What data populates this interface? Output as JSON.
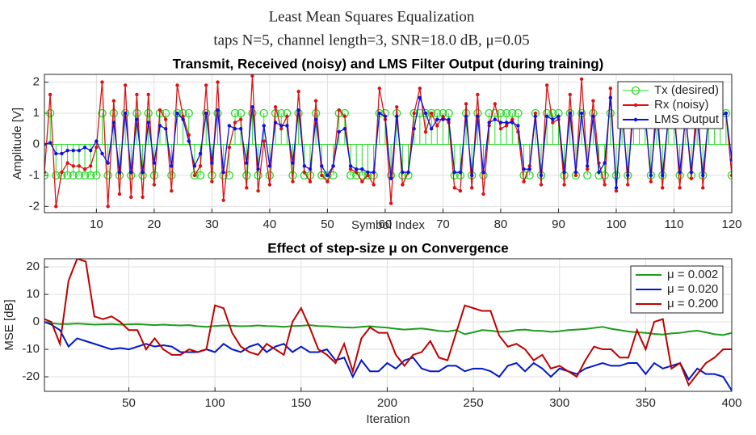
{
  "figure": {
    "title": "Least Mean Squares Equalization",
    "subtitle": "taps N=5, channel length=3, SNR=18.0 dB, μ=0.05"
  },
  "chart_data": [
    {
      "type": "line",
      "title": "Transmit, Received (noisy) and LMS Filter Output (during training)",
      "xlabel": "Symbol Index",
      "ylabel": "Amplitude [V]",
      "xlim": [
        1,
        120
      ],
      "xticks": [
        10,
        20,
        30,
        40,
        50,
        60,
        70,
        80,
        90,
        100,
        110,
        120
      ],
      "ylim": [
        -2.2,
        2.25
      ],
      "yticks": [
        -2,
        -1,
        0,
        1,
        2
      ],
      "grid": true,
      "legend": "upper right",
      "x": [
        1,
        2,
        3,
        4,
        5,
        6,
        7,
        8,
        9,
        10,
        11,
        12,
        13,
        14,
        15,
        16,
        17,
        18,
        19,
        20,
        21,
        22,
        23,
        24,
        25,
        26,
        27,
        28,
        29,
        30,
        31,
        32,
        33,
        34,
        35,
        36,
        37,
        38,
        39,
        40,
        41,
        42,
        43,
        44,
        45,
        46,
        47,
        48,
        49,
        50,
        51,
        52,
        53,
        54,
        55,
        56,
        57,
        58,
        59,
        60,
        61,
        62,
        63,
        64,
        65,
        66,
        67,
        68,
        69,
        70,
        71,
        72,
        73,
        74,
        75,
        76,
        77,
        78,
        79,
        80,
        81,
        82,
        83,
        84,
        85,
        86,
        87,
        88,
        89,
        90,
        91,
        92,
        93,
        94,
        95,
        96,
        97,
        98,
        99,
        100,
        101,
        102,
        103,
        104,
        105,
        106,
        107,
        108,
        109,
        110,
        111,
        112,
        113,
        114,
        115,
        116,
        117,
        118,
        119,
        120
      ],
      "series": [
        {
          "name": "Tx (desired)",
          "color": "#22dd22",
          "style": "stem",
          "values": [
            -1,
            1,
            -1,
            -1,
            -1,
            -1,
            -1,
            -1,
            -1,
            -1,
            1,
            -1,
            1,
            -1,
            1,
            -1,
            1,
            -1,
            1,
            -1,
            1,
            1,
            -1,
            1,
            1,
            1,
            -1,
            -1,
            1,
            -1,
            1,
            -1,
            -1,
            1,
            1,
            -1,
            1,
            -1,
            1,
            -1,
            1,
            1,
            1,
            -1,
            1,
            -1,
            -1,
            1,
            -1,
            -1,
            -1,
            1,
            1,
            -1,
            -1,
            -1,
            -1,
            -1,
            1,
            1,
            -1,
            1,
            -1,
            -1,
            1,
            1,
            1,
            1,
            1,
            1,
            1,
            -1,
            -1,
            1,
            -1,
            1,
            -1,
            1,
            1,
            1,
            1,
            1,
            1,
            -1,
            -1,
            1,
            -1,
            1,
            1,
            1,
            -1,
            1,
            -1,
            1,
            -1,
            1,
            -1,
            -1,
            1,
            -1,
            1,
            -1,
            1,
            1,
            1,
            -1,
            1,
            -1,
            1,
            1,
            -1,
            1,
            -1,
            1,
            -1,
            1,
            1,
            1,
            1,
            -1
          ]
        },
        {
          "name": "Rx (noisy)",
          "color": "#e01010",
          "style": "line",
          "values": [
            -0.9,
            1.6,
            -2.0,
            -0.9,
            -0.6,
            -0.7,
            -0.7,
            -0.8,
            -0.7,
            -0.1,
            2.0,
            -2.0,
            1.4,
            -1.6,
            1.9,
            -1.7,
            1.6,
            -1.7,
            1.6,
            -1.3,
            1.1,
            0.8,
            -1.5,
            1.9,
            0.9,
            0.3,
            -1.0,
            -0.7,
            1.9,
            -1.2,
            2.0,
            -1.8,
            -0.1,
            0.7,
            0.8,
            -1.4,
            2.2,
            -1.5,
            0.1,
            -1.3,
            1.2,
            0.5,
            0.9,
            -1.2,
            1.7,
            -0.9,
            -1.2,
            1.4,
            -1.0,
            -1.2,
            -0.7,
            1.1,
            0.9,
            -0.8,
            -0.9,
            -1.2,
            -1.0,
            -1.3,
            1.8,
            0.8,
            -1.9,
            1.2,
            -1.3,
            -0.9,
            1.0,
            1.8,
            0.4,
            1.0,
            0.6,
            0.9,
            0.7,
            -1.4,
            -1.5,
            1.3,
            -1.4,
            1.6,
            -1.6,
            0.6,
            1.3,
            0.5,
            0.6,
            0.8,
            0.4,
            -1.2,
            -0.7,
            1.0,
            -1.3,
            1.9,
            0.7,
            0.8,
            -1.3,
            1.6,
            -1.0,
            2.1,
            -0.8,
            1.4,
            -0.6,
            -1.3,
            1.8,
            -1.5,
            1.3,
            -1.3,
            1.7,
            0.6,
            1.0,
            -1.2,
            1.6,
            -1.4,
            0.9,
            1.3,
            -1.4,
            1.0,
            -1.1,
            1.6,
            -1.4,
            1.0,
            0.6,
            0.9,
            1.0,
            -1.0
          ]
        },
        {
          "name": "LMS Output",
          "color": "#1010e0",
          "style": "line",
          "values": [
            0,
            0.05,
            -0.3,
            -0.3,
            -0.2,
            -0.2,
            -0.2,
            -0.1,
            -0.2,
            0.1,
            -0.3,
            -0.6,
            0.7,
            -0.9,
            1.0,
            -0.9,
            0.8,
            -0.9,
            0.7,
            -0.6,
            0.6,
            0.5,
            -0.7,
            1.0,
            0.8,
            0.1,
            -0.7,
            -0.3,
            1.0,
            -0.6,
            1.1,
            -0.9,
            0.6,
            0.5,
            0.5,
            -0.6,
            1.2,
            -0.8,
            0.6,
            -0.7,
            0.7,
            0.6,
            0.6,
            -0.6,
            1.1,
            -0.7,
            -0.8,
            0.8,
            -0.7,
            -1.0,
            -0.7,
            0.4,
            0.5,
            -0.7,
            -0.8,
            -0.8,
            -0.9,
            -0.9,
            1.0,
            0.9,
            -1.1,
            0.9,
            -0.9,
            -0.9,
            0.5,
            1.5,
            1.0,
            0.5,
            0.8,
            0.8,
            0.8,
            -0.9,
            -0.9,
            0.9,
            -1.0,
            0.9,
            -0.9,
            0.7,
            0.8,
            0.7,
            0.7,
            0.7,
            0.6,
            -0.8,
            -0.8,
            0.9,
            -1.0,
            0.9,
            0.8,
            0.9,
            -0.9,
            1.0,
            -0.9,
            1.0,
            -0.7,
            0.9,
            -0.9,
            -0.6,
            1.5,
            -1.4,
            1.0,
            -1.0,
            1.1,
            0.8,
            0.9,
            -1.0,
            1.0,
            -1.0,
            0.8,
            0.9,
            -0.9,
            0.9,
            -0.9,
            0.9,
            -1.0,
            0.9,
            0.8,
            0.9,
            1.0,
            -0.5
          ]
        }
      ]
    },
    {
      "type": "line",
      "title": "Effect of step-size μ on Convergence",
      "xlabel": "Iteration",
      "ylabel": "MSE [dB]",
      "xlim": [
        1,
        400
      ],
      "xticks": [
        50,
        100,
        150,
        200,
        250,
        300,
        350,
        400
      ],
      "ylim": [
        -25.3,
        23
      ],
      "yticks": [
        -20,
        -10,
        0,
        10,
        20
      ],
      "grid": true,
      "legend": "upper right",
      "x": [
        1,
        5,
        10,
        15,
        20,
        25,
        30,
        35,
        40,
        45,
        50,
        55,
        60,
        65,
        70,
        75,
        80,
        85,
        90,
        95,
        100,
        105,
        110,
        115,
        120,
        125,
        130,
        135,
        140,
        145,
        150,
        155,
        160,
        165,
        170,
        175,
        180,
        185,
        190,
        195,
        200,
        205,
        210,
        215,
        220,
        225,
        230,
        235,
        240,
        245,
        250,
        255,
        260,
        265,
        270,
        275,
        280,
        285,
        290,
        295,
        300,
        305,
        310,
        315,
        320,
        325,
        330,
        335,
        340,
        345,
        350,
        355,
        360,
        365,
        370,
        375,
        380,
        385,
        390,
        395,
        400
      ],
      "series": [
        {
          "name": "μ = 0.002",
          "color": "#1a9e1a",
          "style": "line",
          "values": [
            0,
            -0.5,
            -0.8,
            -0.8,
            -0.6,
            -0.8,
            -1,
            -0.9,
            -0.8,
            -1,
            -0.9,
            -0.8,
            -1,
            -1.2,
            -1,
            -1.2,
            -1.3,
            -1.2,
            -1.6,
            -1.8,
            -1.5,
            -1.3,
            -1.4,
            -1.6,
            -1.5,
            -1.3,
            -1.5,
            -1.6,
            -1.8,
            -1.5,
            -1.4,
            -1.2,
            -1.5,
            -1.6,
            -1.8,
            -2,
            -2.1,
            -1.8,
            -1.6,
            -1.9,
            -2.1,
            -2.5,
            -2.8,
            -2.6,
            -2.4,
            -2.8,
            -3.3,
            -3.5,
            -3,
            -4.5,
            -3.8,
            -3,
            -3.2,
            -3.6,
            -3.5,
            -3,
            -2.8,
            -3.2,
            -3.3,
            -3.6,
            -3.4,
            -3,
            -2.8,
            -2.6,
            -2.2,
            -1.8,
            -2.5,
            -3,
            -3.5,
            -3.8,
            -4,
            -4.4,
            -4.6,
            -4.2,
            -4,
            -3.5,
            -3.2,
            -3.8,
            -4.5,
            -4.8,
            -4
          ]
        },
        {
          "name": "μ = 0.020",
          "color": "#0018c8",
          "style": "line",
          "values": [
            0,
            -1,
            -3,
            -9,
            -6,
            -7,
            -8,
            -9,
            -10,
            -9.5,
            -10,
            -9,
            -8,
            -9,
            -8.5,
            -9,
            -11,
            -11,
            -11,
            -10,
            -11,
            -8,
            -10,
            -11,
            -9,
            -8,
            -11,
            -9,
            -8,
            -11,
            -9,
            -11,
            -11,
            -10,
            -14,
            -13,
            -20,
            -14,
            -18,
            -18,
            -15,
            -17,
            -14,
            -13,
            -17,
            -18,
            -18,
            -16,
            -16,
            -18,
            -17,
            -17,
            -18,
            -20,
            -16,
            -15,
            -18,
            -15,
            -17,
            -20,
            -17,
            -18,
            -19,
            -17,
            -16,
            -15,
            -16,
            -16,
            -15,
            -15,
            -19,
            -15,
            -17,
            -16,
            -15,
            -21,
            -17,
            -19,
            -19,
            -20,
            -25
          ]
        },
        {
          "name": "μ = 0.200",
          "color": "#c00000",
          "style": "line",
          "values": [
            1,
            0,
            -8,
            15,
            23,
            22,
            2,
            1,
            2,
            0,
            -3,
            -3,
            -10,
            -6,
            -10,
            -12,
            -12,
            -10,
            -11,
            -10,
            6,
            5,
            -4,
            -9,
            -11,
            -12,
            -8,
            -10,
            -12,
            0,
            5,
            -2,
            -10,
            -12,
            -15,
            -8,
            -18,
            -6,
            -2,
            -4,
            -4,
            -12,
            -16,
            -12,
            -11,
            -7,
            -13,
            -14,
            -4,
            6,
            5,
            4,
            4,
            -5,
            -9,
            -8,
            -10,
            -14,
            -12,
            -17,
            -16,
            -18,
            -20,
            -14,
            -9,
            -10,
            -10,
            -13,
            -13,
            -3,
            -10,
            0,
            1,
            -17,
            -15,
            -23,
            -19,
            -15,
            -13,
            -10,
            -10
          ]
        }
      ]
    }
  ]
}
